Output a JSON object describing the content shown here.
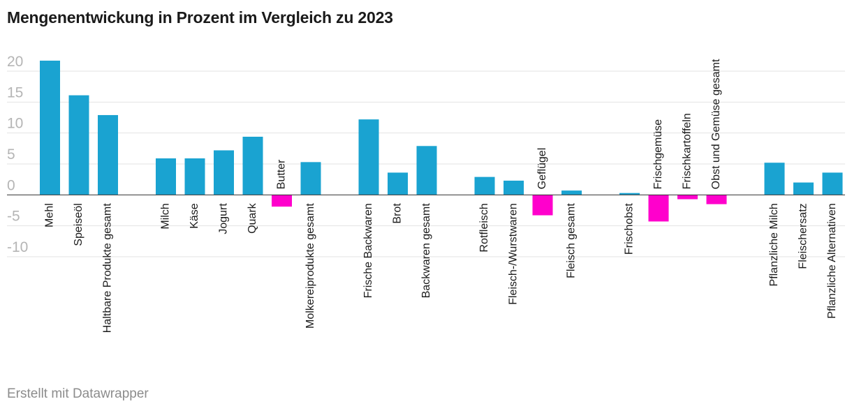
{
  "chart_data": {
    "type": "bar",
    "title": "Mengenentwickung in Prozent im Vergleich zu 2023",
    "xlabel": "",
    "ylabel": "",
    "ylim": [
      -10,
      20
    ],
    "yticks": [
      20,
      15,
      10,
      5,
      0,
      -5,
      -10
    ],
    "grid": true,
    "colors": {
      "positive": "#1aa3d1",
      "negative": "#ff00cc",
      "grid": "#e3e3e3",
      "zero": "#333333"
    },
    "groups": [
      [
        "Mehl",
        "Speiseöl",
        "Haltbare Produkte gesamt"
      ],
      [
        "Milch",
        "Käse",
        "Jogurt",
        "Quark",
        "Butter",
        "Molkereiprodukte gesamt"
      ],
      [
        "Frische Backwaren",
        "Brot",
        "Backwaren gesamt"
      ],
      [
        "Rotfleisch",
        "Fleisch-/Wurstwaren",
        "Geflügel",
        "Fleisch gesamt"
      ],
      [
        "Frischobst",
        "Frischgemüse",
        "Frischkartoffeln",
        "Obst und Gemüse gesamt"
      ],
      [
        "Pflanzliche Milch",
        "Fleischersatz",
        "Pflanzliche Alternativen"
      ]
    ],
    "categories": [
      "Mehl",
      "Speiseöl",
      "Haltbare Produkte gesamt",
      "Milch",
      "Käse",
      "Jogurt",
      "Quark",
      "Butter",
      "Molkereiprodukte gesamt",
      "Frische Backwaren",
      "Brot",
      "Backwaren gesamt",
      "Rotfleisch",
      "Fleisch-/Wurstwaren",
      "Geflügel",
      "Fleisch gesamt",
      "Frischobst",
      "Frischgemüse",
      "Frischkartoffeln",
      "Obst und Gemüse gesamt",
      "Pflanzliche Milch",
      "Fleischersatz",
      "Pflanzliche Alternativen"
    ],
    "values": [
      21.7,
      16.1,
      12.9,
      5.9,
      5.9,
      7.2,
      9.4,
      -1.9,
      5.3,
      12.2,
      3.6,
      7.9,
      2.9,
      2.3,
      -3.3,
      0.7,
      0.3,
      -4.3,
      -0.7,
      -1.5,
      5.2,
      2.0,
      3.6
    ]
  },
  "credit": "Erstellt mit Datawrapper"
}
